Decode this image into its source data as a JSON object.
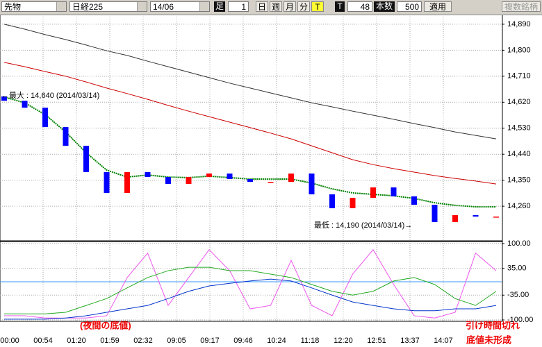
{
  "toolbar": {
    "market": "先物",
    "index": "日経225",
    "contract": "14/06",
    "bar_label": "足",
    "bar_count": "1",
    "day": "日",
    "week": "週",
    "month": "月",
    "minute": "分",
    "tick": "T",
    "t_label": "T",
    "t_value": "48",
    "count_label": "本数",
    "count_value": "500",
    "apply": "適用",
    "multi": "複数銘柄"
  },
  "notes": [
    "(夜間の底値)",
    "引け時間切れ",
    "底値未形成"
  ],
  "chart_data": [
    {
      "type": "candlestick",
      "annotations": [
        "←最大 : 14,640 (2014/03/14)",
        "最低 : 14,190 (2014/03/14)→"
      ],
      "up_color": "#ff0000",
      "down_color": "#0000ff",
      "open": [
        14640,
        14625,
        14601,
        14534,
        14469,
        14378,
        14306,
        14378,
        14361,
        14337,
        14361,
        14373,
        14354,
        14344,
        14344,
        14373,
        14301,
        14253,
        14289,
        14325,
        14294,
        14265,
        14205,
        14229,
        14224
      ],
      "close": [
        14625,
        14601,
        14534,
        14469,
        14378,
        14306,
        14378,
        14361,
        14337,
        14361,
        14373,
        14354,
        14344,
        14344,
        14373,
        14301,
        14253,
        14289,
        14325,
        14294,
        14265,
        14205,
        14229,
        14224,
        14224
      ],
      "series": [
        {
          "color": "#008000",
          "dotted": true,
          "values": [
            14638,
            14618,
            14577,
            14517,
            14445,
            14385,
            14361,
            14368,
            14361,
            14359,
            14364,
            14359,
            14354,
            14354,
            14354,
            14340,
            14320,
            14306,
            14301,
            14296,
            14287,
            14272,
            14263,
            14258,
            14258
          ]
        },
        {
          "color": "#cc0000",
          "dotted": false,
          "values": [
            14758,
            14743,
            14726,
            14710,
            14690,
            14669,
            14650,
            14630,
            14609,
            14589,
            14570,
            14551,
            14532,
            14513,
            14493,
            14469,
            14445,
            14421,
            14404,
            14390,
            14378,
            14366,
            14356,
            14347,
            14337
          ]
        },
        {
          "color": "#333333",
          "dotted": false,
          "values": [
            14890,
            14873,
            14854,
            14837,
            14818,
            14798,
            14782,
            14762,
            14743,
            14724,
            14705,
            14686,
            14669,
            14652,
            14635,
            14618,
            14604,
            14589,
            14575,
            14561,
            14546,
            14532,
            14517,
            14505,
            14493
          ]
        }
      ],
      "ylim": [
        14145,
        14921
      ],
      "yticks": [
        {
          "value": 14890,
          "label": "14,890"
        },
        {
          "value": 14800,
          "label": "14,800"
        },
        {
          "value": 14710,
          "label": "14,710"
        },
        {
          "value": 14620,
          "label": "14,620"
        },
        {
          "value": 14530,
          "label": "14,530"
        },
        {
          "value": 14440,
          "label": "14,440"
        },
        {
          "value": 14350,
          "label": "14,350"
        },
        {
          "value": 14260,
          "label": "14,260"
        }
      ],
      "grid": true
    },
    {
      "type": "line",
      "series": [
        {
          "color": "#ee55ee",
          "values": [
            -89,
            -89,
            -95,
            -95,
            -95,
            -89,
            11,
            75,
            -62,
            11,
            84,
            29,
            -71,
            -62,
            56,
            -62,
            -89,
            20,
            84,
            -7,
            -89,
            -95,
            -80,
            75,
            29
          ]
        },
        {
          "color": "#22aa22",
          "values": [
            -84,
            -84,
            -84,
            -80,
            -62,
            -44,
            -16,
            11,
            29,
            38,
            38,
            29,
            29,
            20,
            11,
            -7,
            -25,
            -35,
            -25,
            2,
            11,
            -7,
            -44,
            -62,
            -25
          ]
        },
        {
          "color": "#0033cc",
          "values": [
            -98,
            -98,
            -98,
            -95,
            -89,
            -80,
            -71,
            -62,
            -44,
            -25,
            -11,
            -4,
            2,
            7,
            2,
            -16,
            -35,
            -53,
            -62,
            -71,
            -76,
            -76,
            -71,
            -71,
            -62
          ]
        }
      ],
      "reference_line": 0,
      "reference_color": "#3399ff",
      "ylim": [
        -100,
        100
      ],
      "yticks": [
        {
          "value": 100,
          "label": "100.00"
        },
        {
          "value": 35,
          "label": "35.00"
        },
        {
          "value": -35,
          "label": "-35.00"
        },
        {
          "value": -100,
          "label": "-100.00"
        }
      ],
      "xticks": [
        "00:00",
        "00:54",
        "01:20",
        "01:59",
        "02:32",
        "09:05",
        "09:17",
        "09:46",
        "10:24",
        "11:18",
        "12:20",
        "12:51",
        "13:37",
        "14:07"
      ],
      "grid": true
    }
  ]
}
